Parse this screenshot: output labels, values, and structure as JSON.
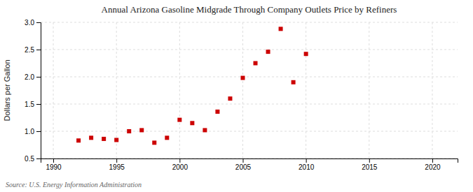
{
  "chart_data": {
    "type": "scatter",
    "title": "Annual Arizona Gasoline Midgrade Through Company Outlets Price by Refiners",
    "ylabel": "Dollars per Gallon",
    "annotations": [
      "Source: U.S. Energy Information Administration"
    ],
    "x": [
      1992,
      1993,
      1994,
      1995,
      1996,
      1997,
      1998,
      1999,
      2000,
      2001,
      2002,
      2003,
      2004,
      2005,
      2006,
      2007,
      2008,
      2009,
      2010
    ],
    "values": [
      0.83,
      0.88,
      0.86,
      0.84,
      1.0,
      1.02,
      0.79,
      0.88,
      1.21,
      1.15,
      1.02,
      1.36,
      1.6,
      1.98,
      2.25,
      2.46,
      2.88,
      1.9,
      2.42
    ],
    "color": "#cc0000",
    "marker": "square",
    "xlim": [
      1989,
      2022
    ],
    "ylim": [
      0.5,
      3.0
    ],
    "xticks": [
      1990,
      1995,
      2000,
      2005,
      2010,
      2015,
      2020
    ],
    "yticks": [
      0.5,
      {
        "value": 1.0,
        "label": "1.0"
      },
      1.5,
      {
        "value": 2.0,
        "label": "2.0"
      },
      2.5,
      {
        "value": 3.0,
        "label": "3.0"
      }
    ],
    "grid": true
  }
}
